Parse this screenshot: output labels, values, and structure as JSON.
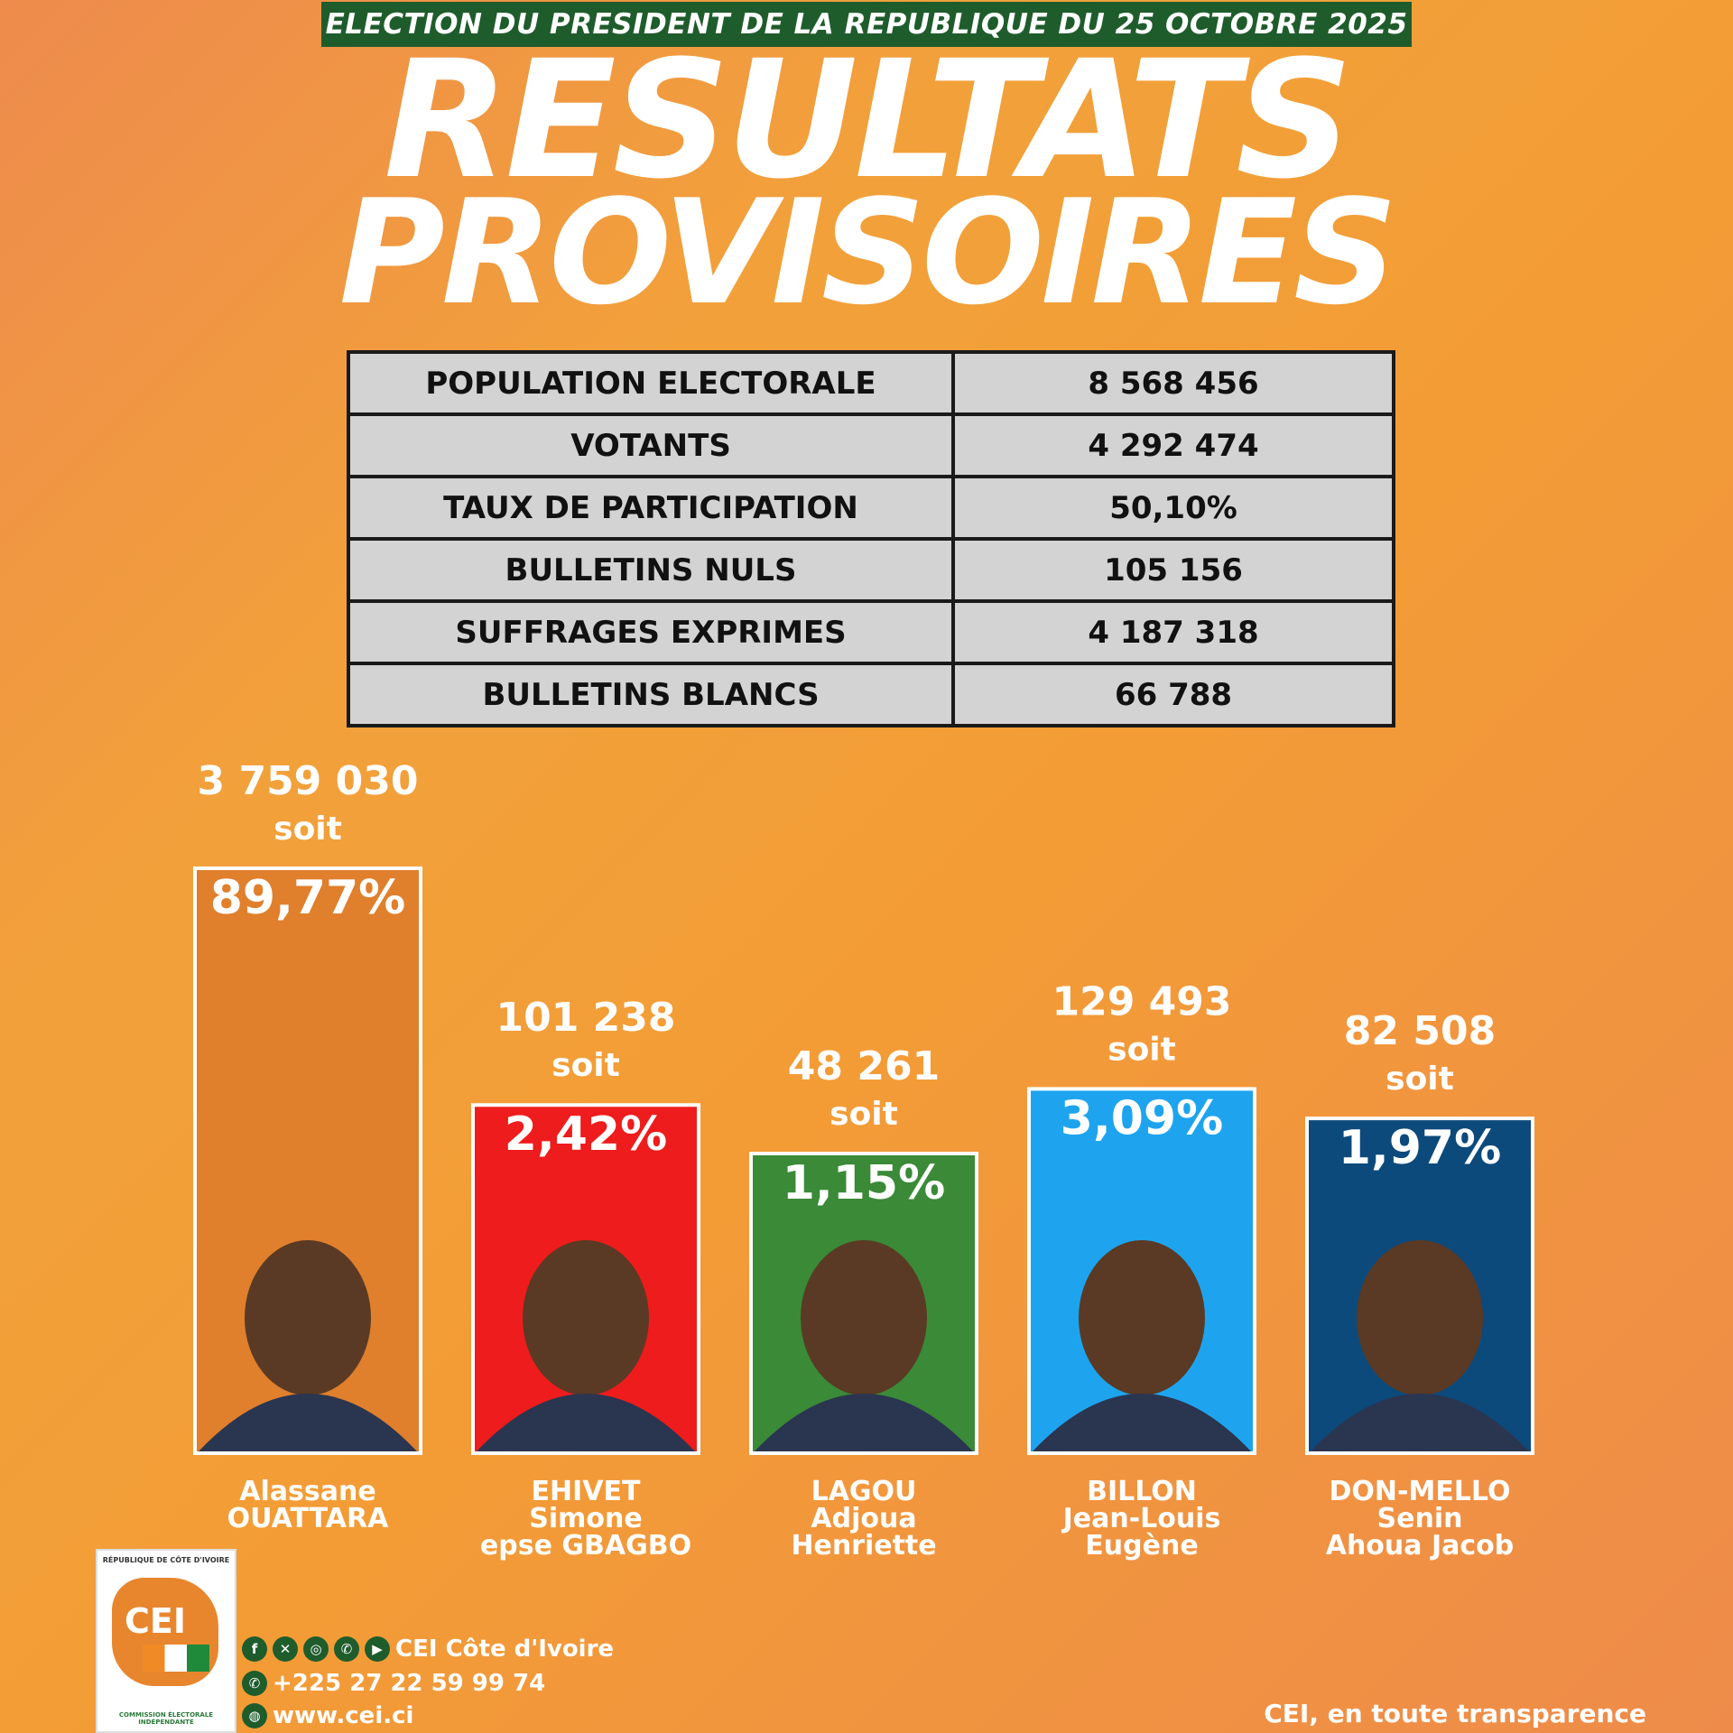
{
  "header": {
    "banner": "ELECTION DU PRESIDENT DE LA REPUBLIQUE DU 25 OCTOBRE 2025",
    "title_line1": "RESULTATS",
    "title_line2": "PROVISOIRES"
  },
  "stats": [
    {
      "label": "POPULATION ELECTORALE",
      "value": "8 568 456"
    },
    {
      "label": "VOTANTS",
      "value": "4 292 474"
    },
    {
      "label": "TAUX DE PARTICIPATION",
      "value": "50,10%"
    },
    {
      "label": "BULLETINS NULS",
      "value": "105 156"
    },
    {
      "label": "SUFFRAGES EXPRIMES",
      "value": "4 187 318"
    },
    {
      "label": "BULLETINS BLANCS",
      "value": "66 788"
    }
  ],
  "chart_data": {
    "type": "bar",
    "title": "",
    "xlabel": "",
    "ylabel": "",
    "value_connector": "soit",
    "categories": [
      [
        "Alassane",
        "OUATTARA"
      ],
      [
        "EHIVET",
        "Simone",
        "epse GBAGBO"
      ],
      [
        "LAGOU",
        "Adjoua",
        "Henriette"
      ],
      [
        "BILLON",
        "Jean-Louis",
        "Eugène"
      ],
      [
        "DON-MELLO",
        "Senin",
        "Ahoua Jacob"
      ]
    ],
    "votes_labels": [
      "3 759 030",
      "101 238",
      "48 261",
      "129 493",
      "82 508"
    ],
    "votes": [
      3759030,
      101238,
      48261,
      129493,
      82508
    ],
    "percent_labels": [
      "89,77%",
      "2,42%",
      "1,15%",
      "3,09%",
      "1,97%"
    ],
    "percents": [
      89.77,
      2.42,
      1.15,
      3.09,
      1.97
    ],
    "colors": [
      "#e07f2c",
      "#ee1c1c",
      "#3a8a37",
      "#1ea4ee",
      "#0c4a7c"
    ]
  },
  "footer": {
    "logo_top": "RÉPUBLIQUE DE CÔTE D'IVOIRE",
    "logo_text": "CEI",
    "logo_bottom": "COMMISSION ÉLECTORALE INDÉPENDANTE",
    "social_name": "CEI Côte d'Ivoire",
    "phone": "+225 27 22 59 99 74",
    "website": "www.cei.ci",
    "slogan": "CEI, en toute transparence",
    "icons": [
      "facebook-icon",
      "x-icon",
      "instagram-icon",
      "whatsapp-icon",
      "youtube-icon"
    ]
  }
}
